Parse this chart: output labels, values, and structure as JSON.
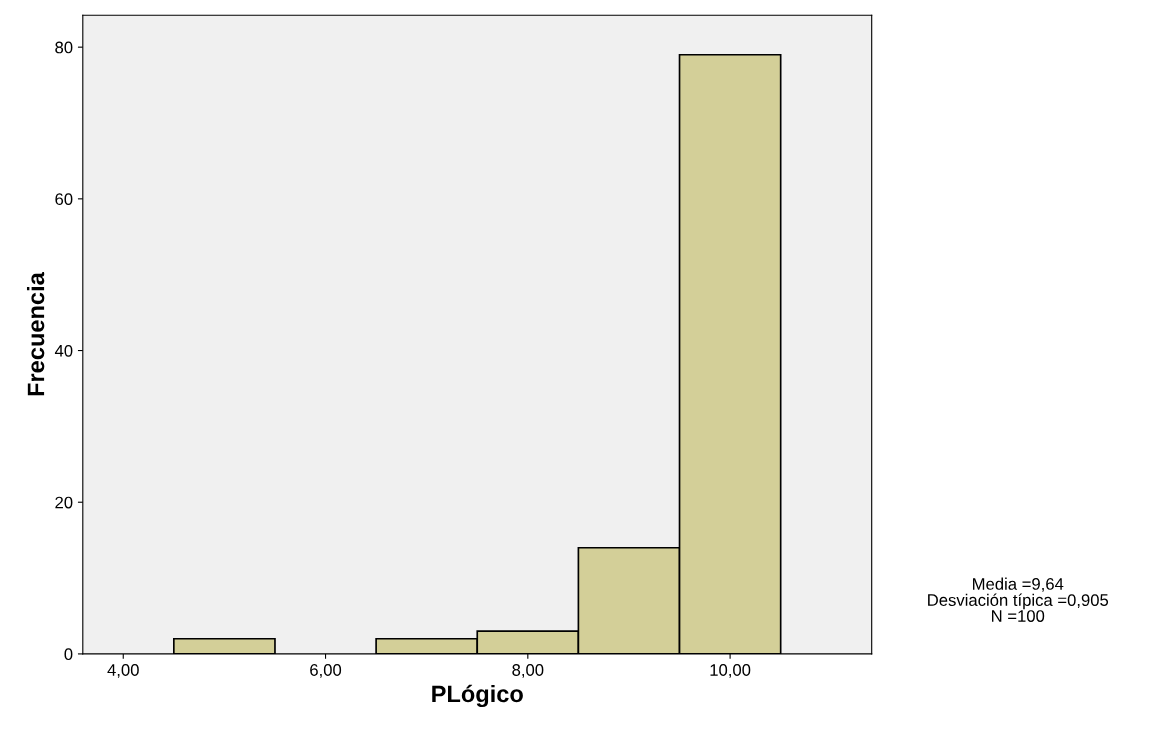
{
  "chart_data": {
    "type": "histogram",
    "xlabel": "PLógico",
    "ylabel": "Frecuencia",
    "bins": [
      4.5,
      5.5,
      6.5,
      7.5,
      8.5,
      9.5,
      10.5
    ],
    "values": [
      2,
      0,
      2,
      3,
      14,
      79
    ],
    "color": "#d3cf98",
    "xlim": [
      3.6,
      11.4
    ],
    "ylim": [
      0,
      84.2
    ],
    "xticks": [
      {
        "value": 4,
        "label": "4,00"
      },
      {
        "value": 6,
        "label": "6,00"
      },
      {
        "value": 8,
        "label": "8,00"
      },
      {
        "value": 10,
        "label": "10,00"
      }
    ],
    "yticks": [
      0,
      20,
      40,
      60,
      80
    ],
    "grid": false,
    "annotations": [
      "Media =9,64",
      "Desviación típica =0,905",
      "N =100"
    ]
  }
}
